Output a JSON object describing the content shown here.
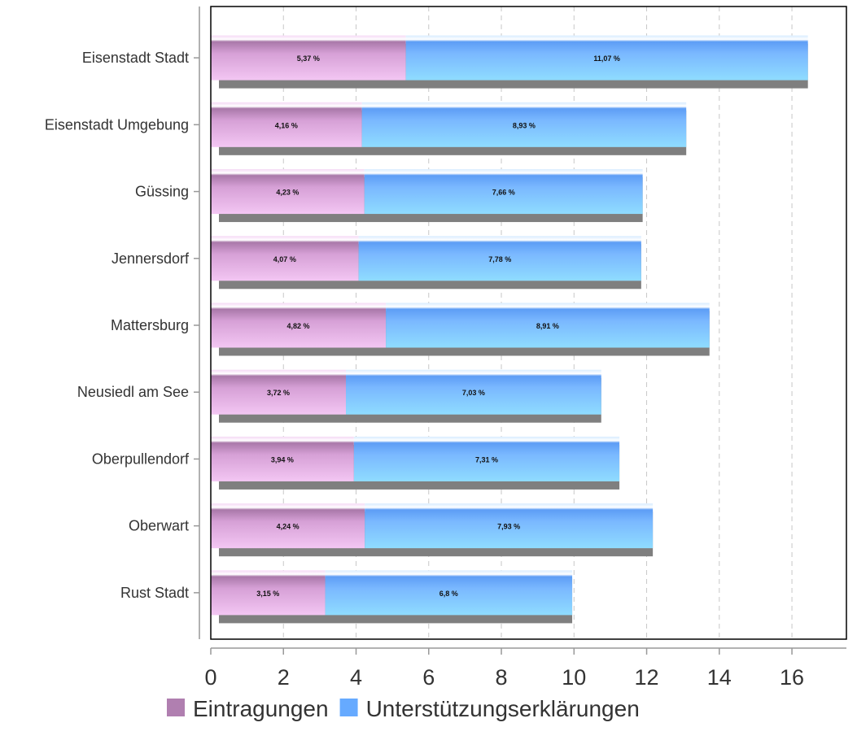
{
  "chart_data": {
    "type": "bar",
    "orientation": "horizontal",
    "stacked": true,
    "categories": [
      "Eisenstadt Stadt",
      "Eisenstadt Umgebung",
      "Güssing",
      "Jennersdorf",
      "Mattersburg",
      "Neusiedl am See",
      "Oberpullendorf",
      "Oberwart",
      "Rust Stadt"
    ],
    "series": [
      {
        "name": "Eintragungen",
        "color": "#b07fb0",
        "values": [
          5.37,
          4.16,
          4.23,
          4.07,
          4.82,
          3.72,
          3.94,
          4.24,
          3.15
        ],
        "labels": [
          "5,37 %",
          "4,16 %",
          "4,23 %",
          "4,07 %",
          "4,82 %",
          "3,72 %",
          "3,94 %",
          "4,24 %",
          "3,15 %"
        ]
      },
      {
        "name": "Unterstützungserklärungen",
        "color": "#66aaff",
        "values": [
          11.07,
          8.93,
          7.66,
          7.78,
          8.91,
          7.03,
          7.31,
          7.93,
          6.8
        ],
        "labels": [
          "11,07 %",
          "8,93 %",
          "7,66 %",
          "7,78 %",
          "8,91 %",
          "7,03 %",
          "7,31 %",
          "7,93 %",
          "6,8 %"
        ]
      }
    ],
    "x_ticks": [
      "0",
      "2",
      "4",
      "6",
      "8",
      "10",
      "12",
      "14",
      "16"
    ],
    "xlim": [
      0,
      17.5
    ],
    "title": "",
    "xlabel": "",
    "ylabel": "",
    "grid": "vertical dashed",
    "legend": "bottom"
  }
}
